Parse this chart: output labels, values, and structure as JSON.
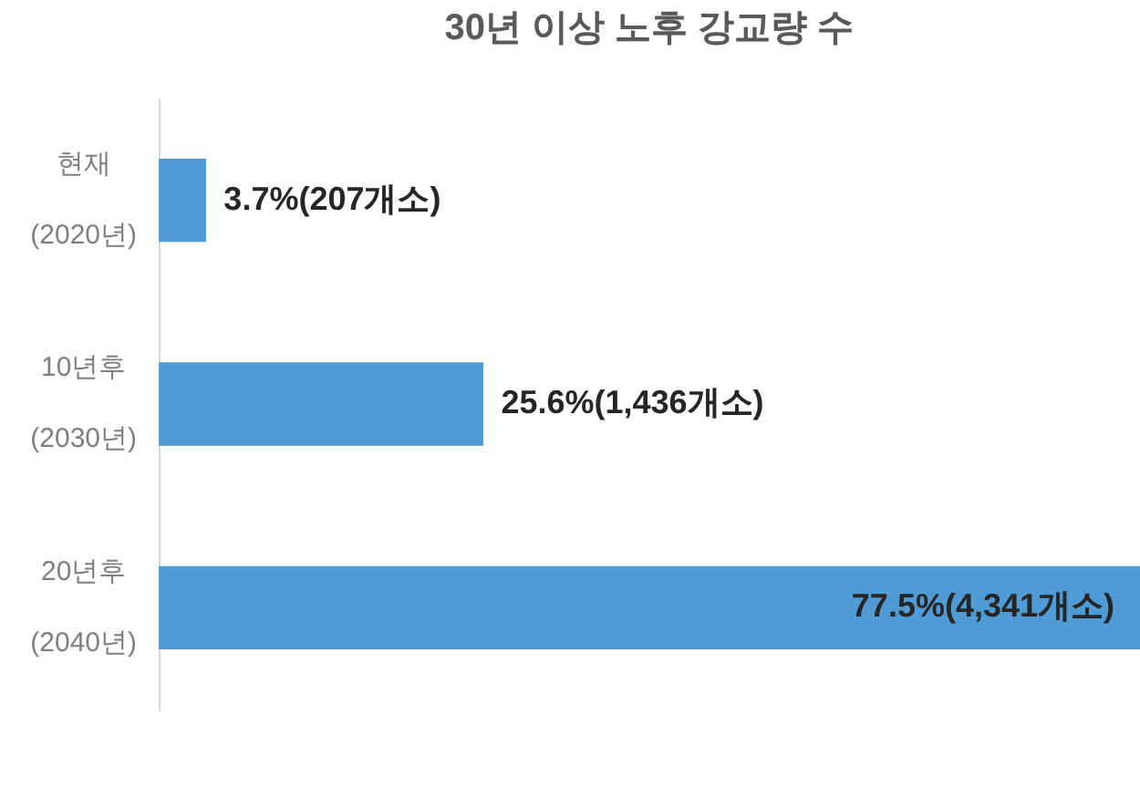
{
  "chart_data": {
    "type": "bar",
    "orientation": "horizontal",
    "title": "30년 이상 노후 강교량 수",
    "categories": [
      "현재\n(2020년)",
      "10년후\n(2030년)",
      "20년후\n(2040년)"
    ],
    "values": [
      3.7,
      25.6,
      77.5
    ],
    "value_labels": [
      "3.7%(207개소)",
      "25.6%(1,436개소)",
      "77.5%(4,341개소)"
    ],
    "color": "#4f9bd5"
  }
}
